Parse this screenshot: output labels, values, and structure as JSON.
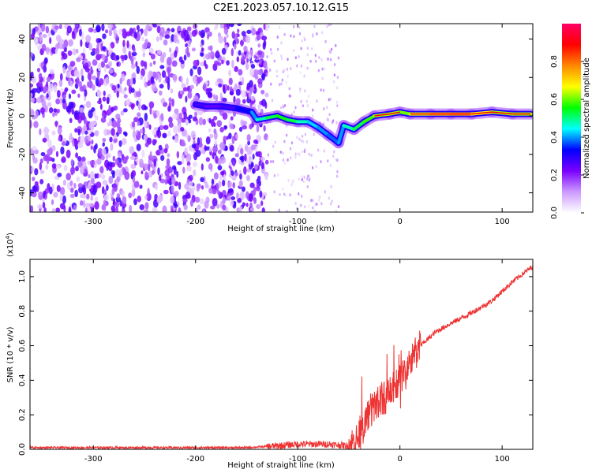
{
  "title": "C2E1.2023.057.10.12.G15",
  "chart_data": [
    {
      "type": "heatmap",
      "xlabel": "Height of straight line (km)",
      "ylabel": "Frequency (Hz)",
      "xlim": [
        -362,
        130
      ],
      "ylim": [
        -50,
        48
      ],
      "x_ticks": [
        -300,
        -200,
        -100,
        0,
        100
      ],
      "y_ticks": [
        -40,
        -20,
        0,
        20,
        40
      ],
      "colorbar": {
        "label": "Normalized spectral amplitude",
        "range": [
          0.0,
          1.0
        ],
        "ticks": [
          "0.0",
          "0.2",
          "0.4",
          "0.6",
          "0.8"
        ],
        "colors": [
          "#ffffff",
          "#cc99ff",
          "#7a00ff",
          "#0000ff",
          "#00ffff",
          "#00ff00",
          "#ffff00",
          "#ff8800",
          "#ff0000",
          "#ff0066"
        ]
      },
      "signal_trace": [
        {
          "x": -200,
          "y": 6,
          "amp": 0.3
        },
        {
          "x": -190,
          "y": 5,
          "amp": 0.25
        },
        {
          "x": -175,
          "y": 5,
          "amp": 0.25
        },
        {
          "x": -160,
          "y": 4,
          "amp": 0.3
        },
        {
          "x": -145,
          "y": 2,
          "amp": 0.35
        },
        {
          "x": -140,
          "y": -2,
          "amp": 0.45
        },
        {
          "x": -130,
          "y": -1,
          "amp": 0.5
        },
        {
          "x": -120,
          "y": 0,
          "amp": 0.55
        },
        {
          "x": -110,
          "y": -2,
          "amp": 0.55
        },
        {
          "x": -100,
          "y": -3,
          "amp": 0.5
        },
        {
          "x": -90,
          "y": -3,
          "amp": 0.45
        },
        {
          "x": -80,
          "y": -6,
          "amp": 0.4
        },
        {
          "x": -70,
          "y": -10,
          "amp": 0.4
        },
        {
          "x": -60,
          "y": -14,
          "amp": 0.35
        },
        {
          "x": -55,
          "y": -5,
          "amp": 0.45
        },
        {
          "x": -45,
          "y": -7,
          "amp": 0.5
        },
        {
          "x": -35,
          "y": -3,
          "amp": 0.55
        },
        {
          "x": -25,
          "y": 0,
          "amp": 0.6
        },
        {
          "x": -10,
          "y": 1,
          "amp": 0.65
        },
        {
          "x": 0,
          "y": 2,
          "amp": 0.6
        },
        {
          "x": 10,
          "y": 1,
          "amp": 0.6
        },
        {
          "x": 30,
          "y": 1,
          "amp": 0.7
        },
        {
          "x": 50,
          "y": 1,
          "amp": 0.75
        },
        {
          "x": 70,
          "y": 1,
          "amp": 0.75
        },
        {
          "x": 90,
          "y": 2,
          "amp": 0.6
        },
        {
          "x": 110,
          "y": 1,
          "amp": 0.65
        },
        {
          "x": 128,
          "y": 1,
          "amp": 0.6
        }
      ],
      "noise": {
        "region_x": [
          -362,
          -130
        ],
        "sparse_region_x": [
          -130,
          -60
        ],
        "max_amp": 0.25
      }
    },
    {
      "type": "line",
      "xlabel": "Height of straight line (km)",
      "ylabel": "SNR (10 * v/v)",
      "y_scale_label": "(x10",
      "y_scale_exp": "4",
      "y_scale_close": ")",
      "xlim": [
        -362,
        130
      ],
      "ylim": [
        0.0,
        1.1
      ],
      "x_ticks": [
        -300,
        -200,
        -100,
        0,
        100
      ],
      "y_ticks": [
        "0.0",
        "0.2",
        "0.4",
        "0.6",
        "0.8",
        "1.0"
      ],
      "line_color": "#ee3333",
      "points": [
        {
          "x": -362,
          "y": 0.01
        },
        {
          "x": -250,
          "y": 0.01
        },
        {
          "x": -150,
          "y": 0.01
        },
        {
          "x": -120,
          "y": 0.02
        },
        {
          "x": -100,
          "y": 0.03
        },
        {
          "x": -70,
          "y": 0.03
        },
        {
          "x": -50,
          "y": 0.02
        },
        {
          "x": -40,
          "y": 0.07
        },
        {
          "x": -30,
          "y": 0.22
        },
        {
          "x": -20,
          "y": 0.28
        },
        {
          "x": -10,
          "y": 0.32
        },
        {
          "x": 0,
          "y": 0.4
        },
        {
          "x": 10,
          "y": 0.5
        },
        {
          "x": 20,
          "y": 0.6
        },
        {
          "x": 35,
          "y": 0.68
        },
        {
          "x": 50,
          "y": 0.73
        },
        {
          "x": 70,
          "y": 0.79
        },
        {
          "x": 90,
          "y": 0.86
        },
        {
          "x": 110,
          "y": 0.97
        },
        {
          "x": 130,
          "y": 1.06
        }
      ],
      "noise_bands": [
        {
          "x": [
            -362,
            -130
          ],
          "amp": 0.006
        },
        {
          "x": [
            -130,
            -50
          ],
          "amp": 0.02
        },
        {
          "x": [
            -50,
            20
          ],
          "amp": 0.1
        },
        {
          "x": [
            20,
            130
          ],
          "amp": 0.015
        }
      ]
    }
  ]
}
